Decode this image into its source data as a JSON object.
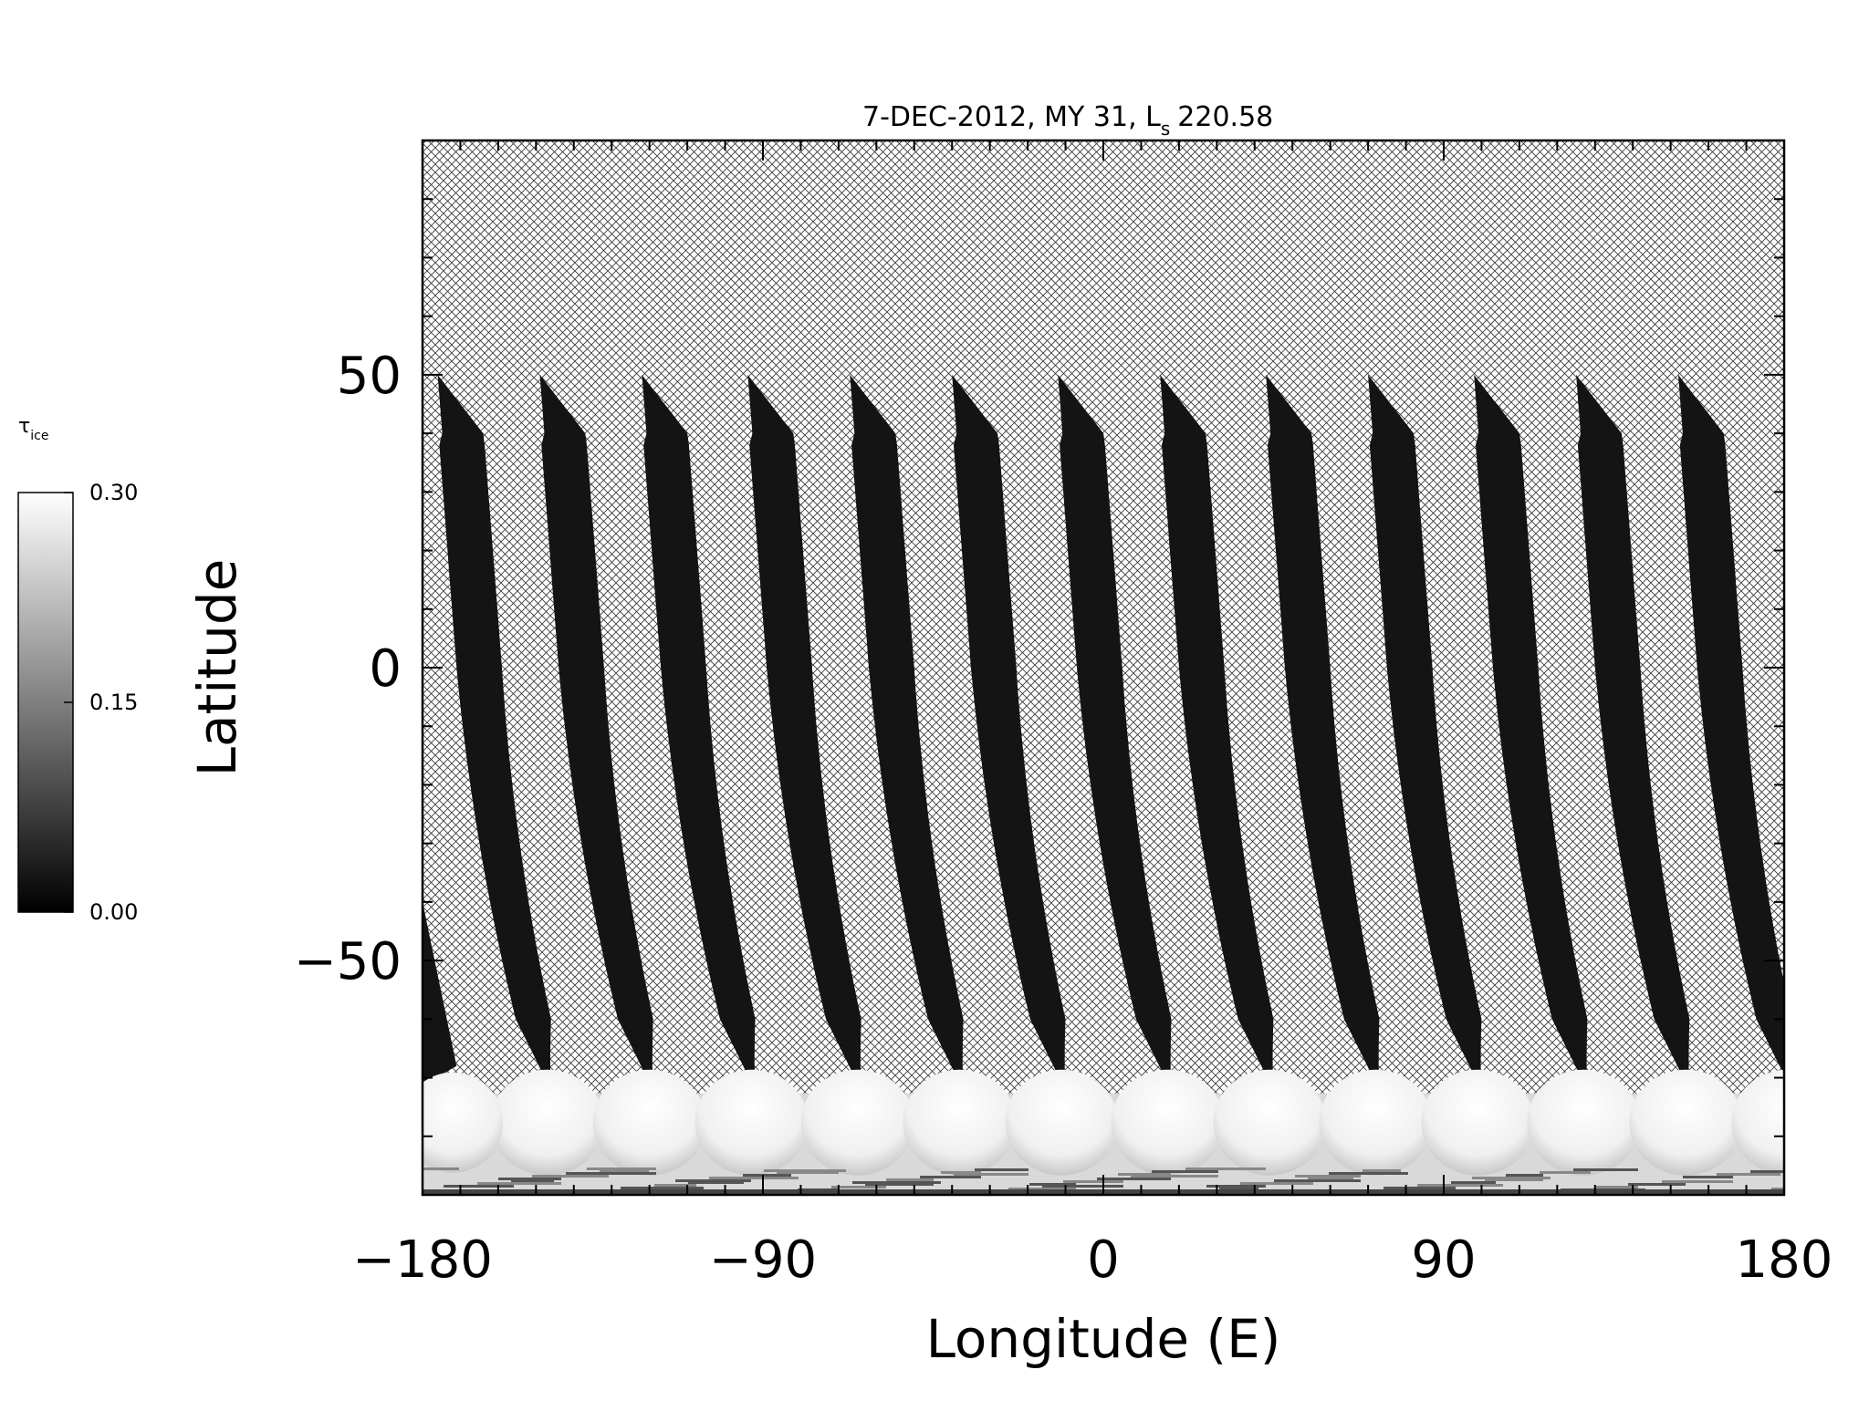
{
  "chart_data": {
    "type": "heatmap",
    "title": "7-DEC-2012, MY 31,  L",
    "title_subscript": "s",
    "title_value": "220.58",
    "xlabel": "Longitude (E)",
    "ylabel": "Latitude",
    "xlim": [
      -180,
      180
    ],
    "ylim": [
      -90,
      90
    ],
    "xticks": [
      -180,
      -90,
      0,
      90,
      180
    ],
    "xtick_labels": [
      "−180",
      "−90",
      "0",
      "90",
      "180"
    ],
    "yticks": [
      -50,
      0,
      50
    ],
    "ytick_labels": [
      "−50",
      "0",
      "50"
    ],
    "x_minor_step": 10,
    "y_minor_step": 10,
    "swath_longitudes_at_equator": [
      -165,
      -138,
      -111,
      -83,
      -56,
      -29,
      -1,
      26,
      54,
      81,
      109,
      136,
      163
    ],
    "swath_top_latitude": 50,
    "swath_bottom_latitude": -72,
    "polar_cap_latitude": -68,
    "no_data_pattern": "crosshatch",
    "colorbar": {
      "label": "τ",
      "label_subscript": "ice",
      "min": 0.0,
      "max": 0.3,
      "ticks": [
        0.0,
        0.15,
        0.3
      ],
      "tick_labels": [
        "0.00",
        "0.15",
        "0.30"
      ],
      "colormap": "grayscale",
      "low_color": "#000000",
      "high_color": "#ffffff"
    },
    "colors": {
      "swath": "#141414",
      "hatch": "#3c3c3c",
      "background": "#ffffff",
      "cap": "#f6f6f6"
    }
  }
}
